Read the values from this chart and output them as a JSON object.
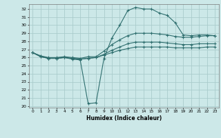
{
  "title": "",
  "xlabel": "Humidex (Indice chaleur)",
  "bg_color": "#cce8e8",
  "line_color": "#2e6e6e",
  "grid_color": "#aacccc",
  "xlim": [
    -0.5,
    23.5
  ],
  "ylim": [
    19.8,
    32.6
  ],
  "yticks": [
    20,
    21,
    22,
    23,
    24,
    25,
    26,
    27,
    28,
    29,
    30,
    31,
    32
  ],
  "xticks": [
    0,
    1,
    2,
    3,
    4,
    5,
    6,
    7,
    8,
    9,
    10,
    11,
    12,
    13,
    14,
    15,
    16,
    17,
    18,
    19,
    20,
    21,
    22,
    23
  ],
  "x": [
    0,
    1,
    2,
    3,
    4,
    5,
    6,
    7,
    8,
    9,
    10,
    11,
    12,
    13,
    14,
    15,
    16,
    17,
    18,
    19,
    20,
    21,
    22,
    23
  ],
  "line1": [
    26.6,
    26.2,
    25.9,
    25.9,
    26.0,
    25.8,
    25.7,
    20.3,
    20.4,
    25.9,
    28.4,
    30.0,
    31.8,
    32.2,
    32.0,
    32.0,
    31.5,
    31.2,
    30.3,
    28.8,
    28.7,
    28.8,
    28.8,
    28.7
  ],
  "line2": [
    26.6,
    26.2,
    26.0,
    26.0,
    26.1,
    26.0,
    25.9,
    26.1,
    26.1,
    26.8,
    27.6,
    28.2,
    28.7,
    29.0,
    29.0,
    29.0,
    28.9,
    28.8,
    28.6,
    28.5,
    28.5,
    28.6,
    28.7,
    28.7
  ],
  "line3": [
    26.6,
    26.1,
    25.9,
    25.9,
    26.0,
    25.9,
    25.8,
    25.9,
    26.0,
    26.4,
    26.9,
    27.3,
    27.7,
    27.9,
    27.9,
    27.9,
    27.9,
    27.8,
    27.7,
    27.6,
    27.6,
    27.7,
    27.7,
    27.7
  ],
  "line4": [
    26.6,
    26.1,
    25.9,
    25.9,
    26.0,
    25.9,
    25.8,
    25.9,
    26.0,
    26.3,
    26.6,
    26.9,
    27.1,
    27.3,
    27.3,
    27.3,
    27.3,
    27.3,
    27.2,
    27.2,
    27.2,
    27.2,
    27.3,
    27.3
  ]
}
